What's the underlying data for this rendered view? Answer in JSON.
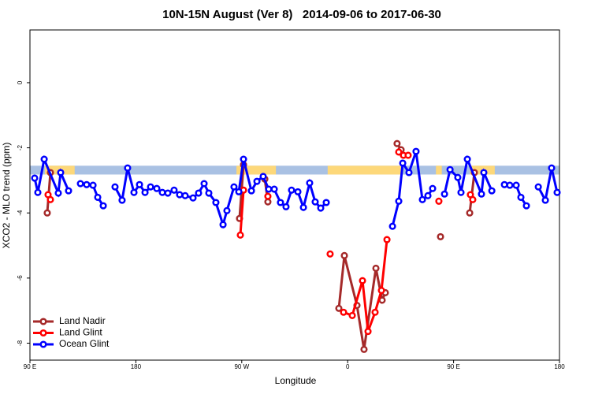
{
  "chart_data": {
    "type": "line",
    "title": "10N-15N August (Ver 8)   2014-09-06 to 2017-06-30",
    "x_label": "Longitude",
    "y_label": "XCO2 - MLO trend (ppm)",
    "xlim": [
      90,
      540
    ],
    "ylim": [
      -8.52,
      1.62
    ],
    "xticks": [
      {
        "value": 90,
        "label": "90 E"
      },
      180,
      {
        "value": 270,
        "label": "90 W"
      },
      {
        "value": 360,
        "label": "0"
      },
      {
        "value": 450,
        "label": "90 E"
      },
      {
        "value": 540,
        "label": "180"
      }
    ],
    "yticks": [
      0,
      -2,
      -4,
      -6,
      -8
    ],
    "legend": "bottom-left",
    "band": {
      "ylim": [
        -2.82,
        -2.55
      ],
      "color": "#a9c1e3",
      "segments": [
        [
          102.7,
          128
        ],
        [
          265.5,
          299
        ],
        [
          343,
          406
        ],
        [
          435,
          440
        ],
        [
          464,
          485
        ]
      ],
      "segment_color": "#fdd87a"
    },
    "series": [
      {
        "name": "Land Nadir",
        "color": "#a52a2a",
        "x": [
          104.7,
          107.4,
          null,
          268.1,
          271.5,
          null,
          289.6,
          292.2,
          null,
          352.5,
          357.2,
          367.9,
          373.9,
          384.0,
          389.3,
          392.0,
          null,
          402.0,
          405.4,
          null,
          438.9,
          null,
          463.7,
          467.7
        ],
        "values": [
          -4.0,
          -2.76,
          null,
          -4.17,
          -2.52,
          null,
          -2.96,
          -3.66,
          null,
          -6.93,
          -5.31,
          -6.84,
          -8.19,
          -5.7,
          -6.68,
          -6.45,
          null,
          -1.87,
          -2.06,
          null,
          -4.73,
          null,
          -4.0,
          -2.76
        ]
      },
      {
        "name": "Land Glint",
        "color": "#ff0000",
        "x": [
          105.4,
          107.4,
          null,
          268.8,
          271.5,
          null,
          292.2,
          null,
          345.1,
          null,
          356.5,
          363.9,
          372.6,
          377.3,
          383.3,
          388.7,
          393.4,
          null,
          403.4,
          407.4,
          411.4,
          null,
          437.5,
          null,
          464.3,
          466.3
        ],
        "values": [
          -3.44,
          -3.59,
          null,
          -4.68,
          -3.3,
          null,
          -3.49,
          null,
          -5.26,
          null,
          -7.05,
          -7.15,
          -6.08,
          -7.64,
          -7.05,
          -6.38,
          -4.82,
          null,
          -2.13,
          -2.23,
          -2.23,
          null,
          -3.64,
          null,
          -3.44,
          -3.59
        ]
      },
      {
        "name": "Ocean Glint",
        "color": "#0000ff",
        "x": [
          94.0,
          96.7,
          102.1,
          114.1,
          116.1,
          122.8,
          null,
          132.9,
          138.2,
          143.6,
          147.6,
          152.3,
          null,
          162.3,
          168.3,
          173.0,
          178.4,
          183.1,
          187.8,
          192.5,
          197.8,
          202.5,
          207.2,
          212.5,
          217.2,
          221.9,
          228.6,
          233.3,
          238.0,
          242.0,
          248.0,
          254.1,
          257.4,
          263.4,
          267.5,
          271.5,
          278.2,
          282.9,
          288.2,
          292.9,
          297.6,
          302.9,
          307.6,
          312.3,
          317.7,
          322.4,
          327.7,
          332.4,
          337.1,
          341.8,
          null,
          398.1,
          403.4,
          406.8,
          412.1,
          418.1,
          423.5,
          428.2,
          432.2,
          null,
          442.3,
          447.0,
          453.6,
          456.3,
          461.7,
          473.7,
          475.7,
          482.5,
          null,
          493.2,
          497.8,
          503.2,
          507.2,
          511.9,
          null,
          522.0,
          528.0,
          533.3,
          538.0
        ],
        "values": [
          -2.93,
          -3.37,
          -2.35,
          -3.39,
          -2.76,
          -3.32,
          null,
          -3.1,
          -3.13,
          -3.15,
          -3.52,
          -3.78,
          null,
          -3.2,
          -3.61,
          -2.62,
          -3.37,
          -3.13,
          -3.37,
          -3.2,
          -3.25,
          -3.37,
          -3.39,
          -3.3,
          -3.44,
          -3.47,
          -3.54,
          -3.39,
          -3.1,
          -3.39,
          -3.68,
          -4.36,
          -3.93,
          -3.2,
          -3.35,
          -2.35,
          -3.32,
          -3.03,
          -2.88,
          -3.27,
          -3.27,
          -3.68,
          -3.81,
          -3.3,
          -3.35,
          -3.83,
          -3.08,
          -3.66,
          -3.85,
          -3.68,
          null,
          -4.41,
          -3.64,
          -2.47,
          -2.76,
          -2.11,
          -3.59,
          -3.47,
          -3.25,
          null,
          -3.42,
          -2.67,
          -2.91,
          -3.37,
          -2.35,
          -3.42,
          -2.76,
          -3.32,
          null,
          -3.13,
          -3.15,
          -3.15,
          -3.52,
          -3.78,
          null,
          -3.2,
          -3.61,
          -2.62,
          -3.37
        ]
      }
    ]
  }
}
